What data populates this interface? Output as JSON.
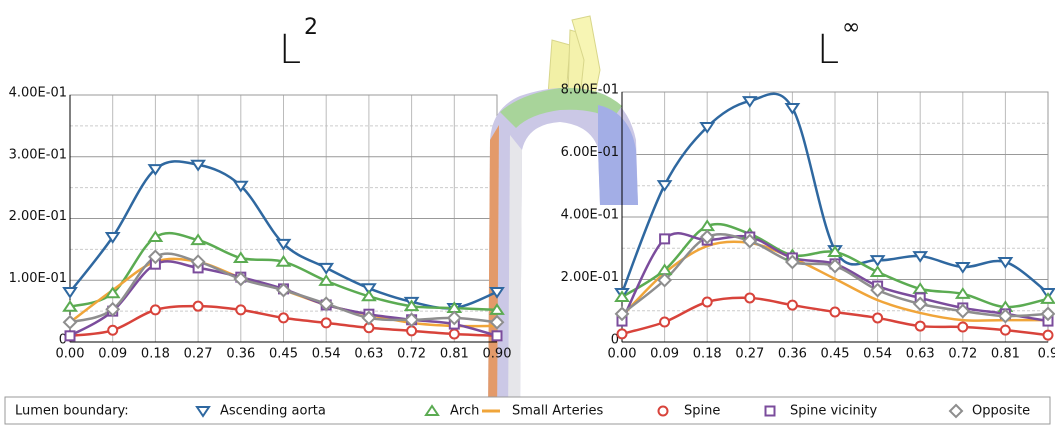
{
  "chart_data": [
    {
      "type": "line",
      "title": "L",
      "title_sup": "2",
      "x": [
        0,
        0.09,
        0.18,
        0.27,
        0.36,
        0.45,
        0.54,
        0.63,
        0.72,
        0.81,
        0.9
      ],
      "xlim": [
        0,
        0.9
      ],
      "xticks": [
        {
          "value": 0,
          "label": "0.00"
        },
        {
          "value": 0.09,
          "label": "0.09"
        },
        {
          "value": 0.18,
          "label": "0.18"
        },
        {
          "value": 0.27,
          "label": "0.27"
        },
        {
          "value": 0.36,
          "label": "0.36"
        },
        {
          "value": 0.45,
          "label": "0.45"
        },
        {
          "value": 0.54,
          "label": "0.54"
        },
        {
          "value": 0.63,
          "label": "0.63"
        },
        {
          "value": 0.72,
          "label": "0.72"
        },
        {
          "value": 0.81,
          "label": "0.81"
        },
        {
          "value": 0.9,
          "label": "0.90"
        }
      ],
      "ylim": [
        0,
        0.4
      ],
      "yticks": [
        0,
        {
          "value": 0.1,
          "label": "1.00E-01"
        },
        {
          "value": 0.2,
          "label": "2.00E-01"
        },
        {
          "value": 0.3,
          "label": "3.00E-01"
        },
        {
          "value": 0.4,
          "label": "4.00E-01"
        }
      ],
      "yminor": [
        0.05,
        0.15,
        0.25,
        0.35
      ],
      "grid": true,
      "series": [
        {
          "name": "Ascending aorta",
          "color": "#2f68a0",
          "marker": "triangle-down",
          "values": [
            0.081,
            0.17,
            0.28,
            0.287,
            0.253,
            0.159,
            0.12,
            0.087,
            0.065,
            0.055,
            0.081
          ]
        },
        {
          "name": "Arch",
          "color": "#5bab52",
          "marker": "triangle-up",
          "values": [
            0.057,
            0.079,
            0.17,
            0.165,
            0.136,
            0.13,
            0.099,
            0.074,
            0.058,
            0.055,
            0.052
          ]
        },
        {
          "name": "Small Arteries",
          "color": "#f0a53a",
          "marker": null,
          "values": [
            0.032,
            0.084,
            0.13,
            0.13,
            0.104,
            0.084,
            0.06,
            0.044,
            0.031,
            0.026,
            0.026
          ]
        },
        {
          "name": "Spine",
          "color": "#d8433b",
          "marker": "circle",
          "values": [
            0.01,
            0.019,
            0.052,
            0.058,
            0.052,
            0.039,
            0.031,
            0.023,
            0.018,
            0.013,
            0.01
          ]
        },
        {
          "name": "Spine vicinity",
          "color": "#7b4c9c",
          "marker": "square",
          "values": [
            0.01,
            0.05,
            0.126,
            0.12,
            0.105,
            0.086,
            0.06,
            0.045,
            0.036,
            0.029,
            0.01
          ]
        },
        {
          "name": "Opposite",
          "color": "#8e8e8e",
          "marker": "diamond",
          "values": [
            0.032,
            0.053,
            0.138,
            0.13,
            0.102,
            0.084,
            0.062,
            0.039,
            0.036,
            0.039,
            0.032
          ]
        }
      ]
    },
    {
      "type": "line",
      "title": "L",
      "title_sup": "∞",
      "x": [
        0,
        0.09,
        0.18,
        0.27,
        0.36,
        0.45,
        0.54,
        0.63,
        0.72,
        0.81,
        0.9
      ],
      "xlim": [
        0,
        0.9
      ],
      "xticks": [
        {
          "value": 0,
          "label": "0.00"
        },
        {
          "value": 0.09,
          "label": "0.09"
        },
        {
          "value": 0.18,
          "label": "0.18"
        },
        {
          "value": 0.27,
          "label": "0.27"
        },
        {
          "value": 0.36,
          "label": "0.36"
        },
        {
          "value": 0.45,
          "label": "0.45"
        },
        {
          "value": 0.54,
          "label": "0.54"
        },
        {
          "value": 0.63,
          "label": "0.63"
        },
        {
          "value": 0.72,
          "label": "0.72"
        },
        {
          "value": 0.81,
          "label": "0.81"
        },
        0.9
      ],
      "ylim": [
        0,
        0.8
      ],
      "yticks": [
        0,
        {
          "value": 0.2,
          "label": "2.00E-01"
        },
        {
          "value": 0.4,
          "label": "4.00E-01"
        },
        {
          "value": 0.6,
          "label": "6.00E-01"
        },
        {
          "value": 0.8,
          "label": "8.00E-01"
        }
      ],
      "yminor": [
        0.1,
        0.3,
        0.5,
        0.7
      ],
      "grid": true,
      "series": [
        {
          "name": "Ascending aorta",
          "color": "#2f68a0",
          "marker": "triangle-down",
          "values": [
            0.157,
            0.502,
            0.688,
            0.771,
            0.749,
            0.294,
            0.262,
            0.275,
            0.24,
            0.256,
            0.157
          ]
        },
        {
          "name": "Arch",
          "color": "#5bab52",
          "marker": "triangle-up",
          "values": [
            0.144,
            0.23,
            0.371,
            0.346,
            0.278,
            0.288,
            0.224,
            0.17,
            0.154,
            0.112,
            0.138
          ]
        },
        {
          "name": "Small Arteries",
          "color": "#f0a53a",
          "marker": null,
          "values": [
            0.083,
            0.221,
            0.307,
            0.317,
            0.269,
            0.202,
            0.134,
            0.093,
            0.07,
            0.07,
            0.07
          ]
        },
        {
          "name": "Spine",
          "color": "#d8433b",
          "marker": "circle",
          "values": [
            0.026,
            0.064,
            0.128,
            0.141,
            0.118,
            0.096,
            0.077,
            0.051,
            0.048,
            0.038,
            0.022
          ]
        },
        {
          "name": "Spine vicinity",
          "color": "#7b4c9c",
          "marker": "square",
          "values": [
            0.067,
            0.33,
            0.326,
            0.336,
            0.269,
            0.25,
            0.179,
            0.141,
            0.109,
            0.09,
            0.067
          ]
        },
        {
          "name": "Opposite",
          "color": "#8e8e8e",
          "marker": "diamond",
          "values": [
            0.09,
            0.198,
            0.336,
            0.323,
            0.256,
            0.243,
            0.166,
            0.122,
            0.099,
            0.083,
            0.09
          ]
        }
      ]
    }
  ],
  "legend": {
    "title": "Lumen boundary:"
  }
}
